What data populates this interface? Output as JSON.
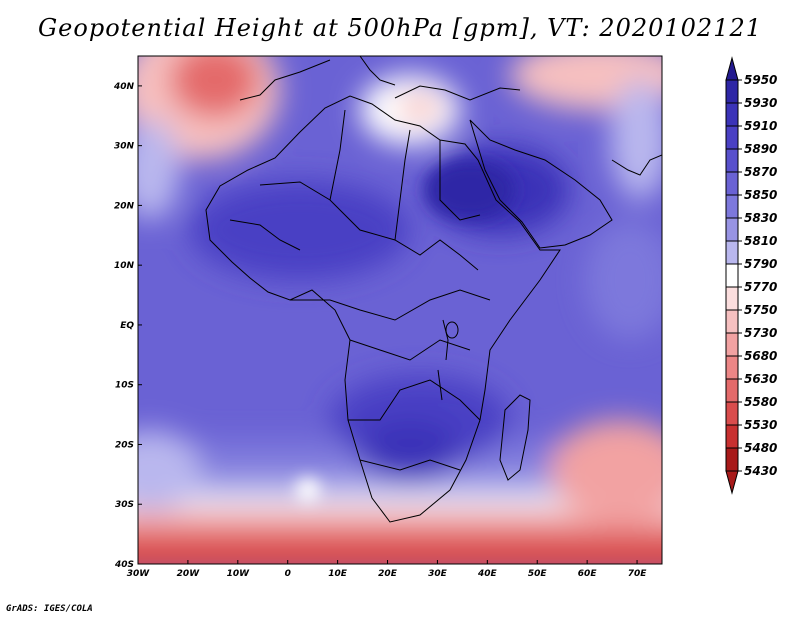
{
  "title": "Geopotential Height at 500hPa [gpm], VT: 2020102121",
  "credit": "GrADS: IGES/COLA",
  "map": {
    "variable": "Geopotential Height at 500hPa",
    "units": "gpm",
    "valid_time": "2020102121",
    "lon_range": [
      -30,
      75
    ],
    "lat_range": [
      -40,
      45
    ],
    "x_ticks": [
      "30W",
      "20W",
      "10W",
      "0",
      "10E",
      "20E",
      "30E",
      "40E",
      "50E",
      "60E",
      "70E"
    ],
    "y_ticks": [
      "40N",
      "30N",
      "20N",
      "10N",
      "EQ",
      "10S",
      "20S",
      "30S",
      "40S"
    ]
  },
  "colorbar": {
    "levels": [
      "5950",
      "5930",
      "5910",
      "5890",
      "5870",
      "5850",
      "5830",
      "5810",
      "5790",
      "5770",
      "5750",
      "5730",
      "5680",
      "5630",
      "5580",
      "5530",
      "5480",
      "5430"
    ],
    "colors": [
      "#231a8f",
      "#2e26a6",
      "#3b33b8",
      "#4a40c4",
      "#5850cc",
      "#6a62d4",
      "#7d78dc",
      "#9894e4",
      "#b9b7ee",
      "#ffffff",
      "#fbdede",
      "#f6c0c0",
      "#f2a2a2",
      "#ec8686",
      "#e46a6a",
      "#d94c4c",
      "#c83030",
      "#a81a1a"
    ]
  }
}
